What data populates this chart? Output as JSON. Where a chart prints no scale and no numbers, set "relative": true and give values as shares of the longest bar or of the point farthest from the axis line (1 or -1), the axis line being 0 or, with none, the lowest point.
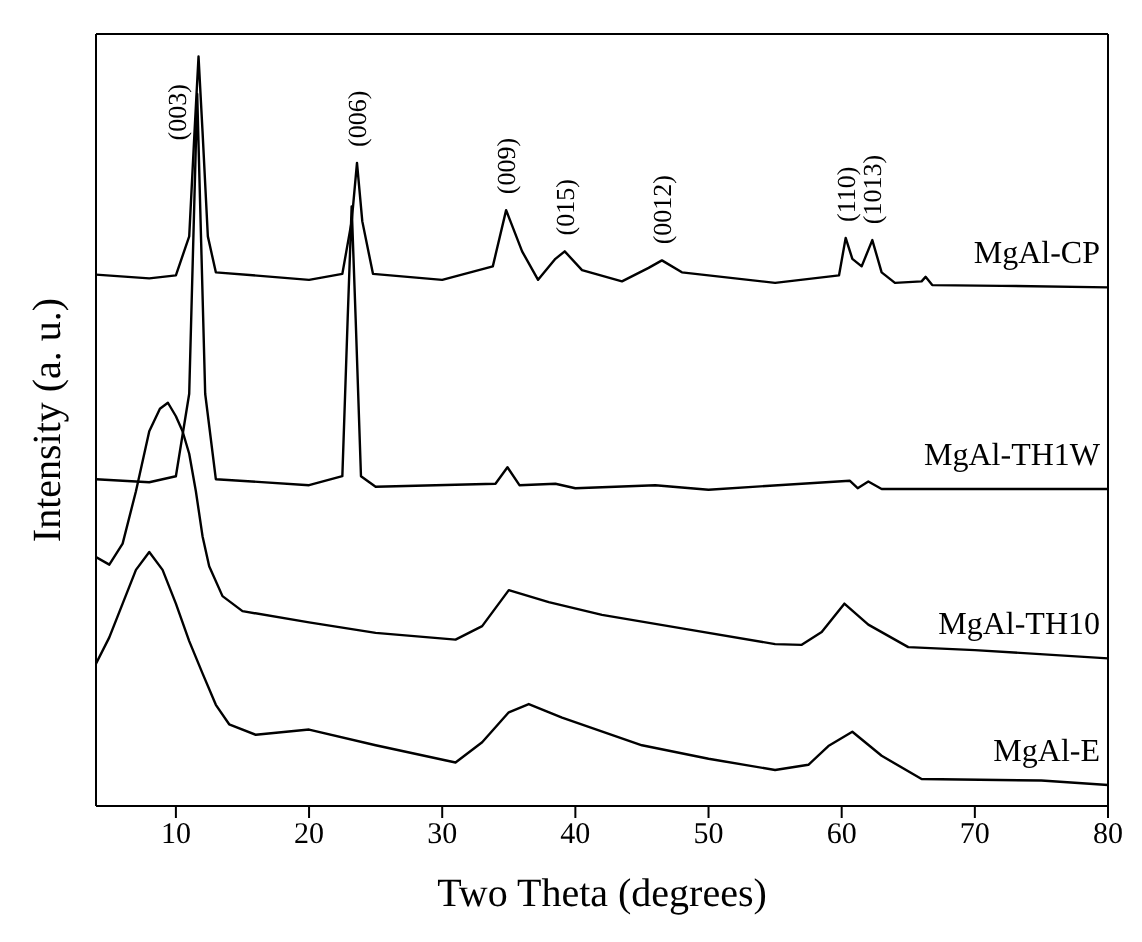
{
  "chart_data": {
    "type": "line",
    "relative": true,
    "xlabel": "Two Theta (degrees)",
    "ylabel": "Intensity (a. u.)",
    "xlim": [
      4,
      80
    ],
    "xticks": [
      10,
      20,
      30,
      40,
      50,
      60,
      70,
      80
    ],
    "marker": "none",
    "series": [
      {
        "name": "MgAl-CP",
        "color": "#000000",
        "x": [
          4,
          8,
          10,
          11,
          11.4,
          11.7,
          12,
          12.4,
          13,
          20,
          22.5,
          23.2,
          23.6,
          24,
          24.8,
          30,
          33.8,
          34.8,
          36,
          37.2,
          38.5,
          39.2,
          40.5,
          43.5,
          45.5,
          46.5,
          48,
          55,
          59.8,
          60.3,
          60.8,
          61.5,
          62.3,
          63,
          64,
          66,
          66.3,
          66.8,
          72,
          80
        ],
        "values": [
          0.709,
          0.704,
          0.708,
          0.76,
          0.9,
          1.0,
          0.9,
          0.76,
          0.712,
          0.702,
          0.71,
          0.78,
          0.858,
          0.78,
          0.71,
          0.702,
          0.72,
          0.795,
          0.74,
          0.702,
          0.73,
          0.74,
          0.715,
          0.7,
          0.718,
          0.728,
          0.712,
          0.698,
          0.708,
          0.758,
          0.73,
          0.72,
          0.755,
          0.712,
          0.698,
          0.7,
          0.706,
          0.695,
          0.694,
          0.692
        ]
      },
      {
        "name": "MgAl-TH1W",
        "color": "#000000",
        "x": [
          4,
          8,
          10,
          11,
          11.3,
          11.6,
          11.9,
          12.2,
          13,
          20,
          22.5,
          22.9,
          23.2,
          23.5,
          23.9,
          25,
          34,
          34.9,
          35.8,
          38.5,
          40,
          46,
          50,
          60.6,
          61.2,
          62,
          63,
          80
        ],
        "values": [
          0.436,
          0.432,
          0.44,
          0.55,
          0.75,
          0.95,
          0.75,
          0.55,
          0.436,
          0.428,
          0.44,
          0.65,
          0.8,
          0.65,
          0.44,
          0.426,
          0.43,
          0.452,
          0.428,
          0.43,
          0.424,
          0.428,
          0.422,
          0.434,
          0.424,
          0.433,
          0.423,
          0.423
        ]
      },
      {
        "name": "MgAl-TH10",
        "color": "#000000",
        "x": [
          4,
          5,
          6,
          7,
          8,
          8.8,
          9.4,
          10,
          10.5,
          11,
          11.5,
          12,
          12.5,
          13.5,
          15,
          20,
          25,
          31,
          33,
          35,
          38,
          42,
          48,
          55,
          57,
          58.5,
          60.2,
          62,
          65,
          70,
          80
        ],
        "values": [
          0.332,
          0.322,
          0.35,
          0.42,
          0.5,
          0.53,
          0.538,
          0.52,
          0.5,
          0.47,
          0.42,
          0.36,
          0.32,
          0.28,
          0.26,
          0.245,
          0.231,
          0.222,
          0.24,
          0.288,
          0.272,
          0.255,
          0.237,
          0.216,
          0.215,
          0.232,
          0.27,
          0.242,
          0.212,
          0.208,
          0.197
        ]
      },
      {
        "name": "MgAl-E",
        "color": "#000000",
        "x": [
          4,
          5,
          6,
          7,
          8,
          9,
          10,
          11,
          12,
          13,
          14,
          16,
          20,
          25,
          31,
          33,
          35,
          36.5,
          39,
          45,
          50,
          55,
          57.5,
          59,
          60.8,
          63,
          66,
          75,
          80
        ],
        "values": [
          0.19,
          0.225,
          0.27,
          0.315,
          0.339,
          0.315,
          0.27,
          0.22,
          0.177,
          0.135,
          0.109,
          0.095,
          0.102,
          0.081,
          0.058,
          0.085,
          0.125,
          0.136,
          0.118,
          0.081,
          0.063,
          0.048,
          0.055,
          0.08,
          0.099,
          0.067,
          0.036,
          0.034,
          0.028
        ]
      }
    ],
    "annotations": [
      {
        "text": "(003)",
        "x": 11.7,
        "y": 1.0
      },
      {
        "text": "(006)",
        "x": 23.6,
        "y": 0.858
      },
      {
        "text": "(009)",
        "x": 34.8,
        "y": 0.795
      },
      {
        "text": "(015)",
        "x": 39.2,
        "y": 0.74
      },
      {
        "text": "(0012)",
        "x": 46.5,
        "y": 0.728
      },
      {
        "text": "(110)",
        "x": 60.3,
        "y": 0.758
      },
      {
        "text": "(1013)",
        "x": 62.3,
        "y": 0.755
      }
    ]
  }
}
